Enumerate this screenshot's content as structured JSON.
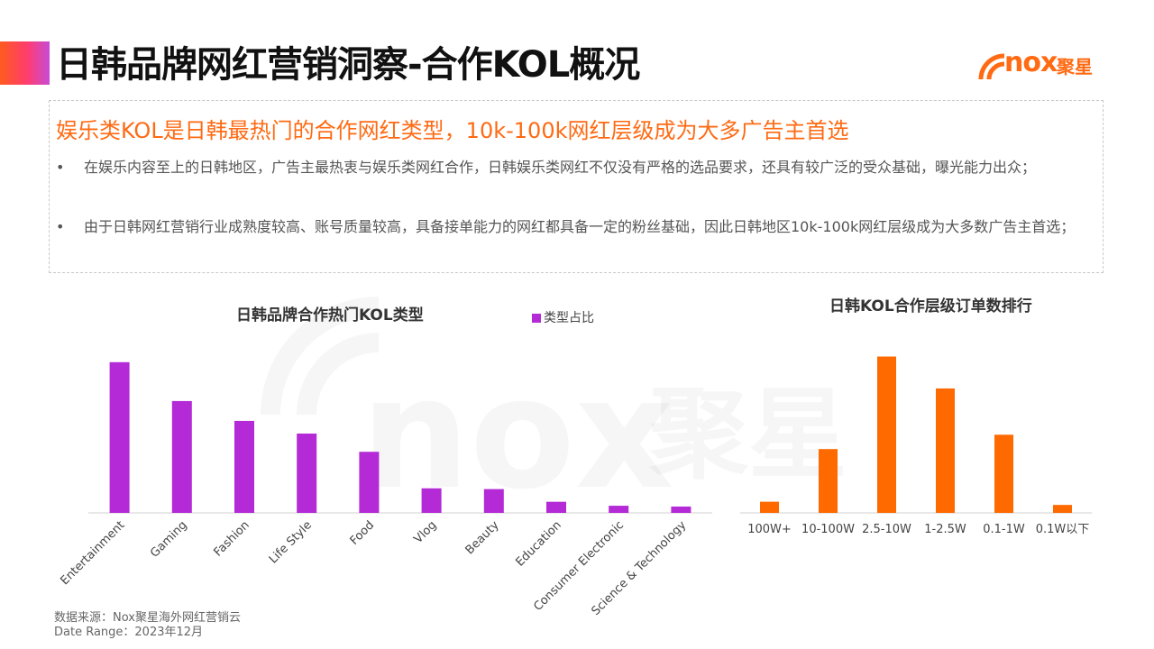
{
  "header": {
    "title": "日韩品牌网红营销洞察-合作KOL概况",
    "logo_text": "nox",
    "logo_cn": "聚星"
  },
  "summary": {
    "headline": "娱乐类KOL是日韩最热门的合作网红类型，10k-100k网红层级成为大多广告主首选",
    "bullets": [
      "在娱乐内容至上的日韩地区，广告主最热衷与娱乐类网红合作，日韩娱乐类网红不仅没有严格的选品要求，还具有较广泛的受众基础，曝光能力出众；",
      "由于日韩网红营销行业成熟度较高、账号质量较高，具备接单能力的网红都具备一定的粉丝基础，因此日韩地区10k-100k网红层级成为大多数广告主首选；"
    ],
    "bullet_symbol": "•"
  },
  "watermark": {
    "text": "nox",
    "text_cn": "聚星"
  },
  "chart_data": [
    {
      "type": "bar",
      "title": "日韩品牌合作热门KOL类型",
      "legend": [
        "类型占比"
      ],
      "color": "#B32AD6",
      "categories": [
        "Entertainment",
        "Gaming",
        "Fashion",
        "Life Style",
        "Food",
        "Vlog",
        "Beauty",
        "Education",
        "Consumer Electronic",
        "Science & Technology"
      ],
      "values": [
        19.0,
        14.1,
        11.6,
        10.0,
        7.7,
        3.1,
        3.0,
        1.4,
        0.9,
        0.8
      ],
      "ylim": [
        0,
        20
      ],
      "xlabel": "",
      "ylabel": "",
      "grid": false
    },
    {
      "type": "bar",
      "title": "日韩KOL合作层级订单数排行",
      "color": "#FF6A00",
      "categories": [
        "100W+",
        "10-100W",
        "2.5-10W",
        "1-2.5W",
        "0.1-1W",
        "0.1W以下"
      ],
      "values": [
        7,
        40,
        98,
        78,
        49,
        5
      ],
      "ylim": [
        0,
        100
      ],
      "xlabel": "",
      "ylabel": "",
      "grid": false
    }
  ],
  "footer": {
    "source": "数据来源：Nox聚星海外网红营销云",
    "date_range": "Date Range：2023年12月"
  }
}
